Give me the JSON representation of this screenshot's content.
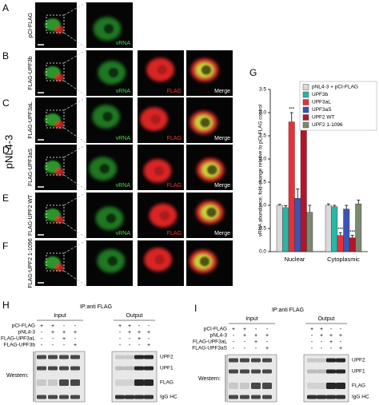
{
  "figure": {
    "panels": [
      "A",
      "B",
      "C",
      "D",
      "E",
      "F",
      "G",
      "H",
      "I"
    ],
    "construct": "pNL4-3",
    "rows": [
      {
        "label": "pCI-FLAG",
        "channels": [
          "vRNA"
        ]
      },
      {
        "label": "FLAG-UPF3b",
        "channels": [
          "vRNA",
          "FLAG",
          "Merge"
        ]
      },
      {
        "label": "FLAG-UPF3aL",
        "channels": [
          "vRNA",
          "FLAG",
          "Merge"
        ]
      },
      {
        "label": "FLAG-UPF3aS",
        "channels": [
          "vRNA",
          "FLAG",
          "Merge"
        ]
      },
      {
        "label": "FLAG-UPF2 WT",
        "channels": [
          "vRNA",
          "FLAG",
          "Merge"
        ]
      },
      {
        "label": "FLAG-UPF2 1-1096",
        "channels": [
          null,
          null,
          null
        ]
      }
    ]
  },
  "chart_data": {
    "type": "bar",
    "ylabel": "vRNA abundance, fold-change relative to pCI-FLAG control",
    "categories": [
      "Nuclear",
      "Cytoplasmic"
    ],
    "series": [
      {
        "name": "pNL4-3 + pCI-FLAG",
        "color": "#d9d9d9",
        "values": [
          1.0,
          1.0
        ],
        "errors": [
          0.02,
          0.03
        ]
      },
      {
        "name": "UPF3b",
        "color": "#2bb5a5",
        "values": [
          0.95,
          0.97
        ],
        "errors": [
          0.04,
          0.03
        ]
      },
      {
        "name": "UPF3aL",
        "color": "#e8303a",
        "values": [
          2.8,
          0.35
        ],
        "errors": [
          0.2,
          0.06
        ],
        "marks": [
          "***",
          "***"
        ]
      },
      {
        "name": "UPF3aS",
        "color": "#3a55b4",
        "values": [
          1.15,
          0.92
        ],
        "errors": [
          0.2,
          0.08
        ]
      },
      {
        "name": "UPF2 WT",
        "color": "#b4142a",
        "values": [
          2.95,
          0.3
        ],
        "errors": [
          0.3,
          0.05
        ],
        "marks": [
          "***",
          "***"
        ]
      },
      {
        "name": "UPF2 1-1096",
        "color": "#7a8a70",
        "values": [
          0.85,
          1.03
        ],
        "errors": [
          0.15,
          0.08
        ]
      }
    ],
    "ylim": [
      0,
      3.5
    ],
    "yticks": [
      {
        "value": 0,
        "label": "0.0"
      },
      0.5,
      {
        "value": 1,
        "label": "1.0"
      },
      1.5,
      {
        "value": 2,
        "label": "2.0"
      },
      2.5,
      {
        "value": 3,
        "label": "3.0"
      },
      3.5
    ],
    "grid": false,
    "legend": "upper right"
  },
  "blots": [
    {
      "header": "IP:anti FLAG",
      "sections": [
        "Input",
        "Output"
      ],
      "readout": "Western:",
      "conditions": [
        {
          "label": "pCI-FLAG",
          "signs": [
            "+",
            "+",
            "-",
            "-",
            "+",
            "+",
            "-",
            "-"
          ]
        },
        {
          "label": "pNL4-3",
          "signs": [
            "-",
            "+",
            "+",
            "+",
            "-",
            "+",
            "+",
            "+"
          ]
        },
        {
          "label": "FLAG-UPF3aL",
          "signs": [
            "-",
            "-",
            "+",
            "-",
            "-",
            "-",
            "+",
            "-"
          ]
        },
        {
          "label": "FLAG-UPF3b",
          "signs": [
            "-",
            "-",
            "-",
            "+",
            "-",
            "-",
            "-",
            "+"
          ]
        }
      ],
      "bands": [
        "UPF2",
        "UPF1",
        "FLAG",
        "IgG HC"
      ]
    },
    {
      "header": "IP:anti FLAG",
      "sections": [
        "Input",
        "Output"
      ],
      "readout": "Western:",
      "conditions": [
        {
          "label": "pCI-FLAG",
          "signs": [
            "+",
            "+",
            "-",
            "-",
            "+",
            "+",
            "-",
            "-"
          ]
        },
        {
          "label": "pNL4-3",
          "signs": [
            "-",
            "+",
            "+",
            "+",
            "-",
            "+",
            "+",
            "+"
          ]
        },
        {
          "label": "FLAG-UPF3aL",
          "signs": [
            "-",
            "-",
            "+",
            "-",
            "-",
            "-",
            "+",
            "-"
          ]
        },
        {
          "label": "FLAG-UPF3aS",
          "signs": [
            "-",
            "-",
            "-",
            "+",
            "-",
            "-",
            "-",
            "+"
          ]
        }
      ],
      "bands": [
        "UPF2",
        "UPF1",
        "FLAG",
        "IgG HC"
      ]
    }
  ]
}
